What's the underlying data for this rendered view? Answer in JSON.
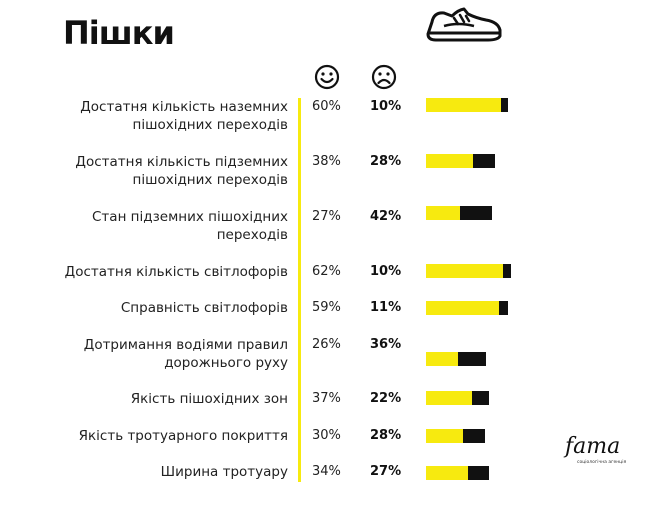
{
  "title": "Пішки",
  "colors": {
    "satisfied": "#f7ea0f",
    "dissatisfied": "#111111",
    "accent_line": "#f7ea0f"
  },
  "icons": {
    "header": "sneaker-icon",
    "satisfied": "smiley-face-icon",
    "dissatisfied": "frown-face-icon"
  },
  "logo": {
    "name": "fama-logo",
    "text": "FAMA",
    "subtitle": "соціологічна агенція"
  },
  "chart_data": {
    "type": "bar",
    "orientation": "horizontal",
    "stacked": true,
    "categories": [
      [
        "Достатня кількість наземних",
        "пішохідних переходів"
      ],
      [
        "Достатня кількість підземних",
        "пішохідних переходів"
      ],
      [
        "Стан підземних пішохідних",
        "переходів"
      ],
      [
        "Достатня кількість світлофорів"
      ],
      [
        "Справність світлофорів"
      ],
      [
        "Дотримання водіями правил",
        "дорожнього руху"
      ],
      [
        "Якість пішохідних зон"
      ],
      [
        "Якість тротуарного покриття"
      ],
      [
        "Ширина тротуару"
      ]
    ],
    "series": [
      {
        "values": [
          60,
          38,
          27,
          62,
          59,
          26,
          37,
          30,
          34
        ],
        "labels": [
          "60%",
          "38%",
          "27%",
          "62%",
          "59%",
          "26%",
          "37%",
          "30%",
          "34%"
        ]
      },
      {
        "values": [
          10,
          28,
          42,
          10,
          11,
          36,
          22,
          28,
          27
        ],
        "labels": [
          "10%",
          "28%",
          "42%",
          "10%",
          "11%",
          "36%",
          "22%",
          "28%",
          "27%"
        ]
      }
    ],
    "legend": "none"
  }
}
